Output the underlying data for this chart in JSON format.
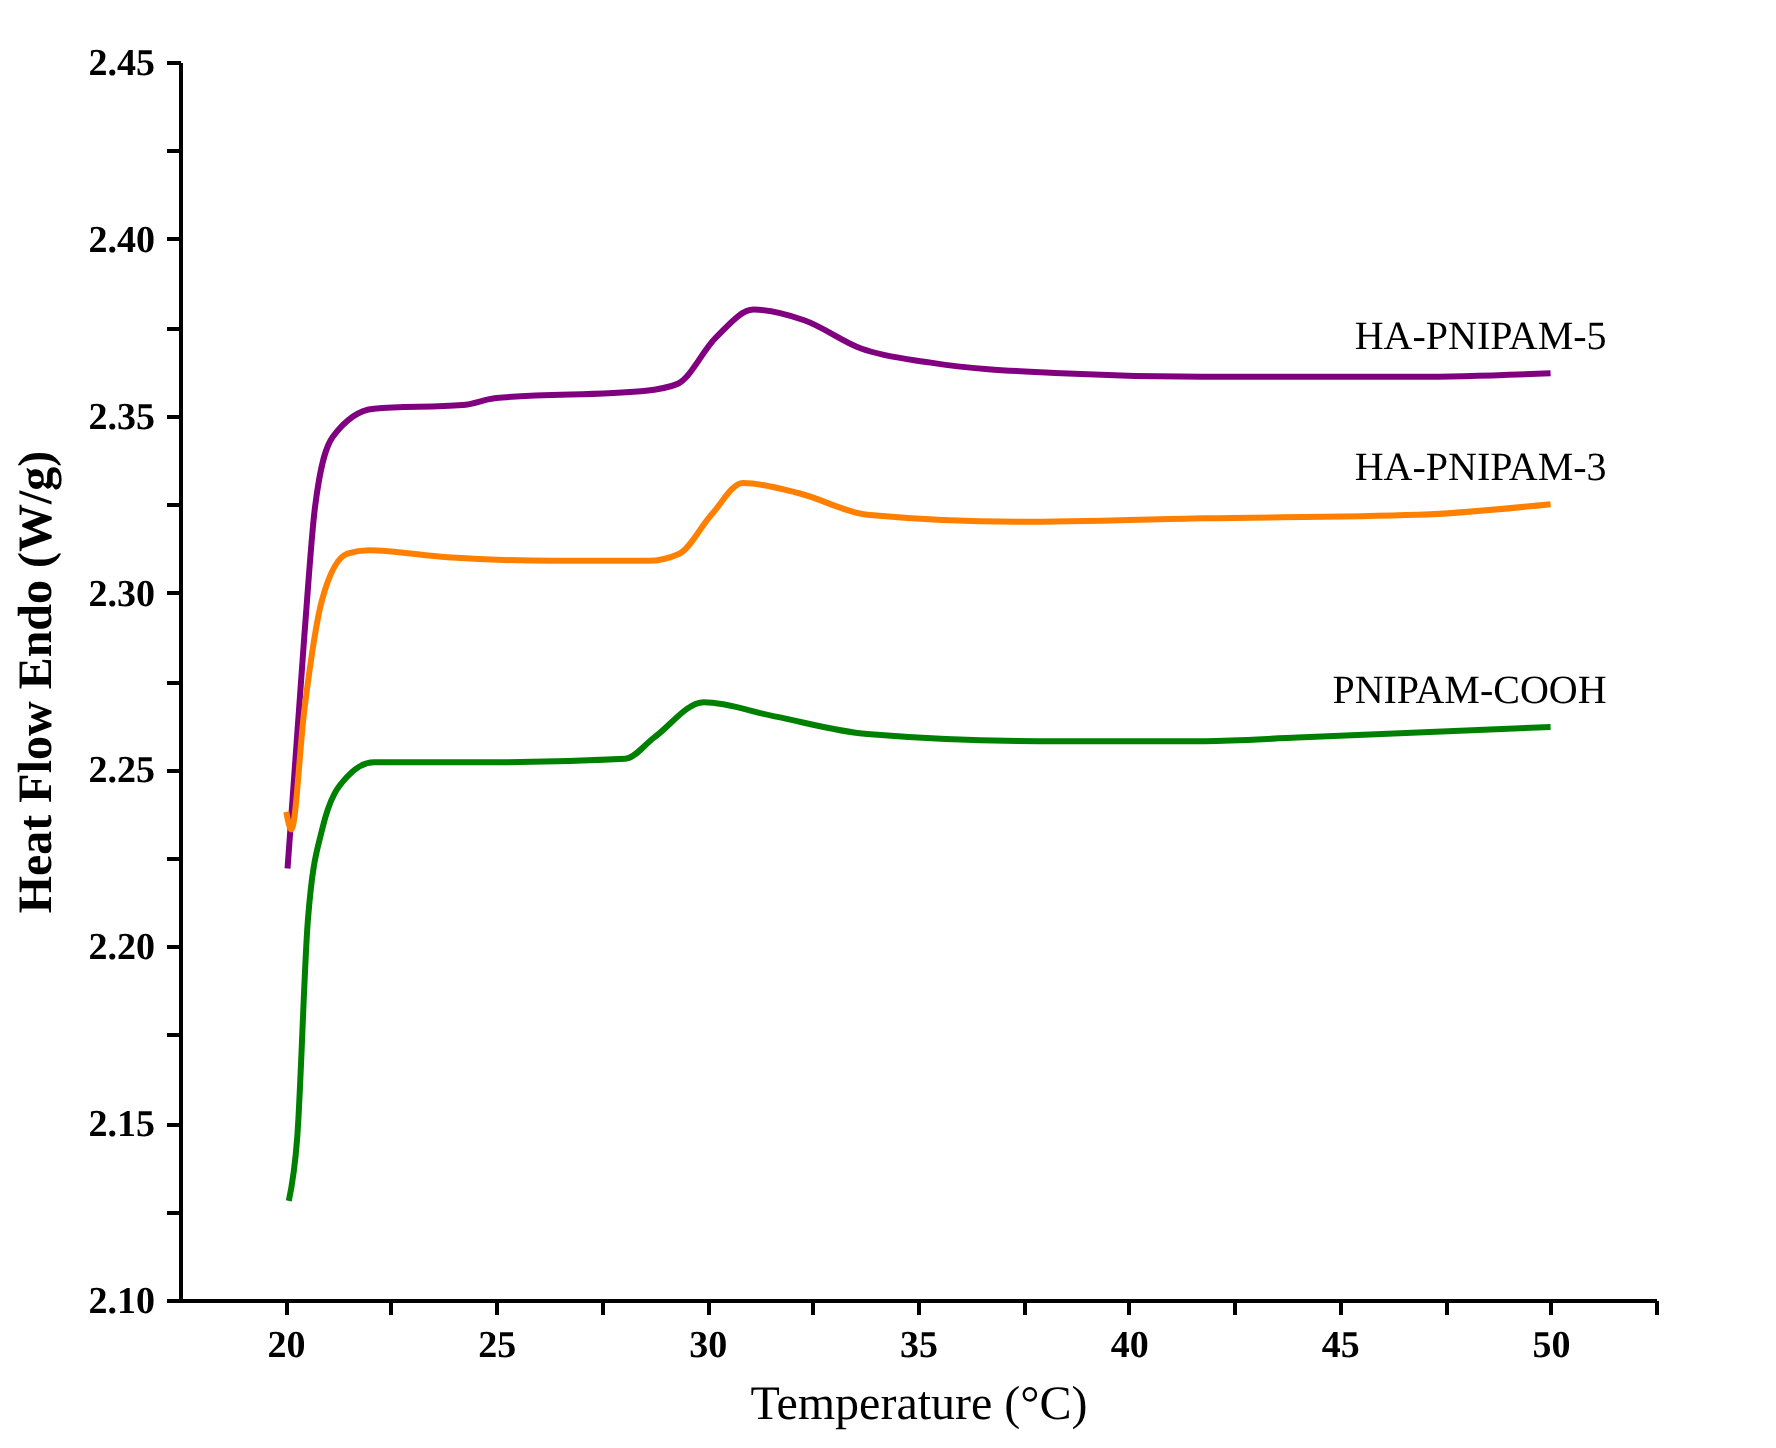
{
  "chart_data": {
    "type": "line",
    "xlabel": "Temperature (°C)",
    "ylabel": "Heat Flow Endo (W/g)",
    "xlim": [
      17.5,
      52.5
    ],
    "ylim": [
      2.1,
      2.45
    ],
    "xticks": [
      20,
      {
        "value": 22.5,
        "label": null
      },
      25,
      {
        "value": 27.5,
        "label": null
      },
      30,
      {
        "value": 32.5,
        "label": null
      },
      35,
      {
        "value": 37.5,
        "label": null
      },
      40,
      {
        "value": 42.5,
        "label": null
      },
      45,
      {
        "value": 47.5,
        "label": null
      },
      50,
      {
        "value": 52.5,
        "label": null
      }
    ],
    "yticks": [
      {
        "value": 2.1,
        "label": "2.10"
      },
      {
        "value": 2.125,
        "label": null
      },
      {
        "value": 2.15,
        "label": "2.15"
      },
      {
        "value": 2.175,
        "label": null
      },
      {
        "value": 2.2,
        "label": "2.20"
      },
      {
        "value": 2.225,
        "label": null
      },
      {
        "value": 2.25,
        "label": "2.25"
      },
      {
        "value": 2.275,
        "label": null
      },
      {
        "value": 2.3,
        "label": "2.30"
      },
      {
        "value": 2.325,
        "label": null
      },
      {
        "value": 2.35,
        "label": "2.35"
      },
      {
        "value": 2.375,
        "label": null
      },
      {
        "value": 2.4,
        "label": "2.40"
      },
      {
        "value": 2.425,
        "label": null
      },
      {
        "value": 2.45,
        "label": "2.45"
      }
    ],
    "grid": false,
    "legend": false,
    "marker": "none",
    "line_style": "solid",
    "series": [
      {
        "name": "HA-PNIPAM-5",
        "color": "#800080",
        "x": [
          20.05,
          20.45,
          20.7,
          21.12,
          22.1,
          24.2,
          25,
          28.5,
          29.3,
          30.2,
          31.1,
          32.3,
          33.65,
          35.3,
          38.4,
          41.75,
          46.85,
          50
        ],
        "values": [
          2.222,
          2.288,
          2.324,
          2.344,
          2.352,
          2.353,
          2.355,
          2.357,
          2.359,
          2.372,
          2.38,
          2.377,
          2.369,
          2.365,
          2.362,
          2.361,
          2.361,
          2.362
        ]
      },
      {
        "name": "HA-PNIPAM-3",
        "color": "#ff8000",
        "x": [
          20.02,
          20.14,
          20.45,
          20.87,
          21.47,
          21.97,
          23.84,
          26.35,
          28.6,
          29.34,
          30.1,
          30.85,
          32.2,
          33.8,
          37.4,
          41.8,
          46.85,
          50
        ],
        "values": [
          2.238,
          2.233,
          2.267,
          2.298,
          2.311,
          2.312,
          2.31,
          2.309,
          2.309,
          2.311,
          2.322,
          2.331,
          2.328,
          2.322,
          2.32,
          2.321,
          2.322,
          2.325
        ]
      },
      {
        "name": "PNIPAM-COOH",
        "color": "#008000",
        "x": [
          20.08,
          20.28,
          20.53,
          20.87,
          21.47,
          22.1,
          24.7,
          28.06,
          28.74,
          29.92,
          31.6,
          33.8,
          37.87,
          41.8,
          44,
          50
        ],
        "values": [
          2.128,
          2.146,
          2.207,
          2.233,
          2.248,
          2.252,
          2.252,
          2.253,
          2.259,
          2.269,
          2.265,
          2.26,
          2.258,
          2.258,
          2.259,
          2.262
        ]
      }
    ]
  }
}
